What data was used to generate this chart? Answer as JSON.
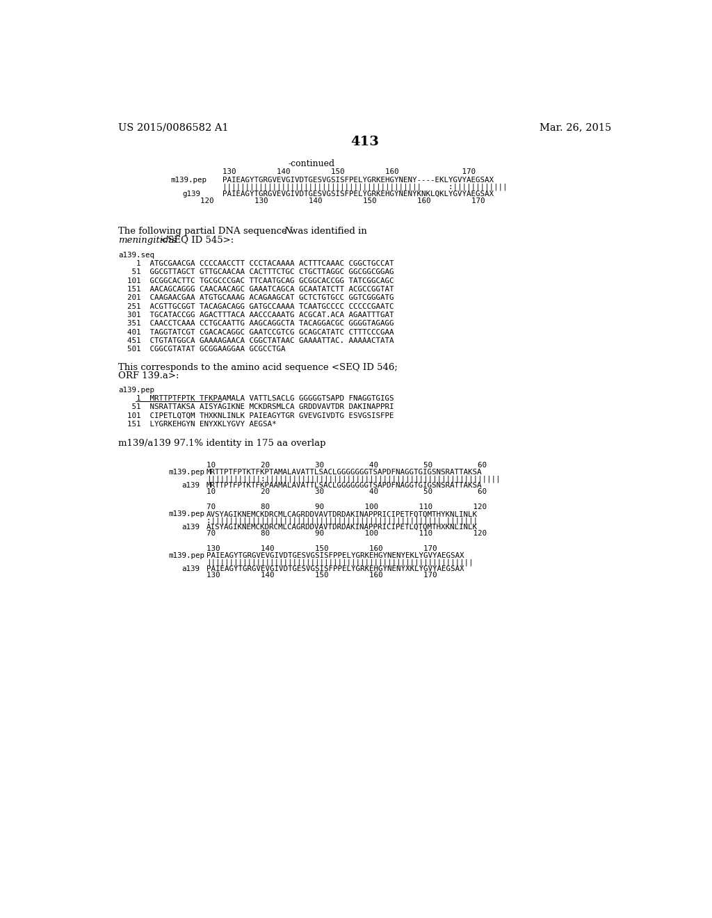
{
  "background_color": "#ffffff",
  "page_number": "413",
  "left_header": "US 2015/0086582 A1",
  "right_header": "Mar. 26, 2015",
  "continued_label": "-continued",
  "dna_sequences": [
    {
      "num": "1",
      "seq": "ATGCGAACGA CCCCAACCTT CCCTACAAAA ACTTTCAAAC CGGCTGCCAT"
    },
    {
      "num": "51",
      "seq": "GGCGTTAGCT GTTGCAACAA CACTTTCTGC CTGCTTAGGC GGCGGCGGAG"
    },
    {
      "num": "101",
      "seq": "GCGGCACTTC TGCGCCCGAC TTCAATGCAG GCGGCACCGG TATCGGCAGC"
    },
    {
      "num": "151",
      "seq": "AACAGCAGGG CAACAACAGC GAAATCAGCA GCAATATCTT ACGCCGGTAT"
    },
    {
      "num": "201",
      "seq": "CAAGAACGAA ATGTGCAAAG ACAGAAGCAT GCTCTGTGCC GGTCGGGATG"
    },
    {
      "num": "251",
      "seq": "ACGTTGCGGT TACAGACAGG GATGCCAAAA TCAATGCCCC CCCCCGAATC"
    },
    {
      "num": "301",
      "seq": "TGCATACCGG AGACTTTACA AACCCAAATG ACGCAT.ACA AGAATTTGAT"
    },
    {
      "num": "351",
      "seq": "CAACCTCAAA CCTGCAATTG AAGCAGGCTA TACAGGACGC GGGGTAGAGG"
    },
    {
      "num": "401",
      "seq": "TAGGTATCGT CGACACAGGC GAATCCGTCG GCAGCATATC CTTTCCCGAA"
    },
    {
      "num": "451",
      "seq": "CTGTATGGCA GAAAAGAACA CGGCTATAAC GAAAATTAC. AAAAACTATA"
    },
    {
      "num": "501",
      "seq": "CGGCGTATAT GCGGAAGGAA GCGCCTGA"
    }
  ],
  "pep_sequences": [
    {
      "num": "1",
      "seq": "MRTTPTFPTK TFKPAAMALA VATTLSACLG GGGGGTSAPD FNAGGTGIGS"
    },
    {
      "num": "51",
      "seq": "NSRATTAKSA AISYAGIKNE MCKDRSMLCA GRDDVAVTDR DAKINAPPRI"
    },
    {
      "num": "101",
      "seq": "CIPETLQTQM THXKNLINLK PAIEAGYTGR GVEVGIVDTG ESVGSISFPE"
    },
    {
      "num": "151",
      "seq": "LYGRKEHGYN ENYXKLYGVY AEGSA*"
    }
  ]
}
